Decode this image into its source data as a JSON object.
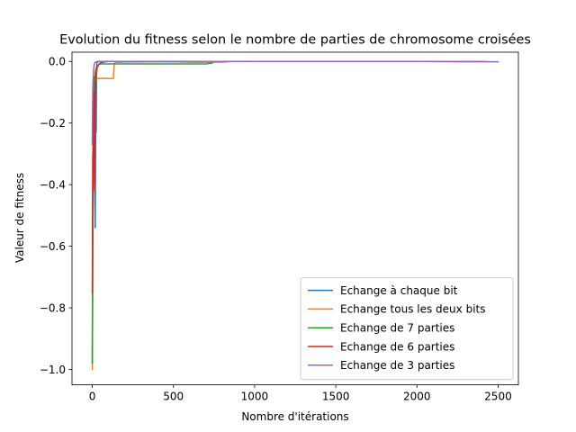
{
  "chart_data": {
    "type": "line",
    "title": "Evolution du fitness selon le nombre de parties de chromosome croisées",
    "xlabel": "Nombre d'itérations",
    "ylabel": "Valeur de fitness",
    "xlim": [
      -125,
      2625
    ],
    "ylim": [
      -1.05,
      0.03
    ],
    "xticks": [
      0,
      500,
      1000,
      1500,
      2000,
      2500
    ],
    "yticks": [
      0.0,
      -0.2,
      -0.4,
      -0.6,
      -0.8,
      -1.0
    ],
    "xtick_labels": [
      "0",
      "500",
      "1000",
      "1500",
      "2000",
      "2500"
    ],
    "ytick_labels": [
      "0.0",
      "−0.2",
      "−0.4",
      "−0.6",
      "−0.8",
      "−1.0"
    ],
    "grid": false,
    "legend_position": "lower-right",
    "series": [
      {
        "name": "Echange à chaque bit",
        "color": "#1f77b4",
        "x": [
          0,
          2,
          4,
          6,
          8,
          10,
          12,
          14,
          16,
          18,
          20,
          22,
          24,
          26,
          28,
          30,
          35,
          40,
          60,
          100,
          200,
          500,
          1000,
          1500,
          2000,
          2250
        ],
        "y": [
          -0.98,
          -0.55,
          -0.35,
          -0.2,
          -0.12,
          -0.08,
          -0.05,
          -0.3,
          -0.45,
          -0.54,
          -0.3,
          -0.1,
          -0.23,
          -0.05,
          -0.01,
          0.0,
          -0.002,
          0.0,
          0.0,
          0.0,
          0.0,
          0.0,
          0.0,
          0.0,
          0.0,
          0.0
        ]
      },
      {
        "name": "Echange tous les deux bits",
        "color": "#ff7f0e",
        "x": [
          0,
          2,
          4,
          6,
          8,
          10,
          15,
          20,
          25,
          30,
          40,
          60,
          80,
          100,
          120,
          130,
          135,
          140,
          200,
          500,
          1000,
          1500,
          2000,
          2430
        ],
        "y": [
          -1.0,
          -0.8,
          -0.5,
          -0.3,
          -0.15,
          -0.08,
          -0.05,
          -0.03,
          -0.06,
          -0.055,
          -0.055,
          -0.055,
          -0.055,
          -0.055,
          -0.055,
          -0.055,
          -0.01,
          -0.003,
          -0.002,
          -0.001,
          0.0,
          0.0,
          0.0,
          0.0
        ]
      },
      {
        "name": "Echange de 7 parties",
        "color": "#2ca02c",
        "x": [
          0,
          1,
          2,
          3,
          5,
          8,
          10,
          15,
          20,
          25,
          30,
          40,
          50,
          60,
          80,
          100,
          150,
          200,
          300,
          400,
          500,
          600,
          700,
          740
        ],
        "y": [
          -0.98,
          -0.86,
          -0.75,
          -0.5,
          -0.3,
          -0.15,
          -0.1,
          -0.05,
          -0.06,
          -0.05,
          -0.02,
          -0.01,
          -0.008,
          -0.008,
          -0.008,
          -0.008,
          -0.008,
          -0.008,
          -0.008,
          -0.008,
          -0.008,
          -0.008,
          -0.008,
          -0.005
        ]
      },
      {
        "name": "Echange de 6 parties",
        "color": "#d62728",
        "x": [
          0,
          1,
          2,
          3,
          4,
          5,
          6,
          8,
          10,
          12,
          14,
          16,
          18,
          20,
          22,
          25,
          30,
          35,
          40,
          50,
          60,
          80,
          100,
          150
        ],
        "y": [
          -0.75,
          -0.6,
          -0.45,
          -0.3,
          -0.42,
          -0.35,
          -0.2,
          -0.15,
          -0.1,
          -0.3,
          -0.42,
          -0.25,
          -0.1,
          -0.06,
          -0.03,
          -0.02,
          -0.02,
          -0.015,
          -0.01,
          -0.005,
          -0.003,
          -0.001,
          0.0,
          0.0
        ]
      },
      {
        "name": "Echange de 3 parties",
        "color": "#9467bd",
        "x": [
          0,
          1,
          2,
          3,
          4,
          6,
          8,
          10,
          12,
          15,
          20,
          30,
          50,
          100,
          200,
          400,
          600,
          800,
          850,
          1000,
          1500,
          2000,
          2250,
          2500
        ],
        "y": [
          -0.27,
          -0.2,
          -0.14,
          -0.1,
          -0.07,
          -0.05,
          -0.03,
          -0.02,
          -0.01,
          -0.005,
          -0.002,
          -0.001,
          0.0,
          0.0,
          0.0,
          0.0,
          -0.002,
          -0.002,
          0.0,
          0.0,
          0.0,
          0.0,
          -0.001,
          -0.001
        ]
      }
    ]
  }
}
